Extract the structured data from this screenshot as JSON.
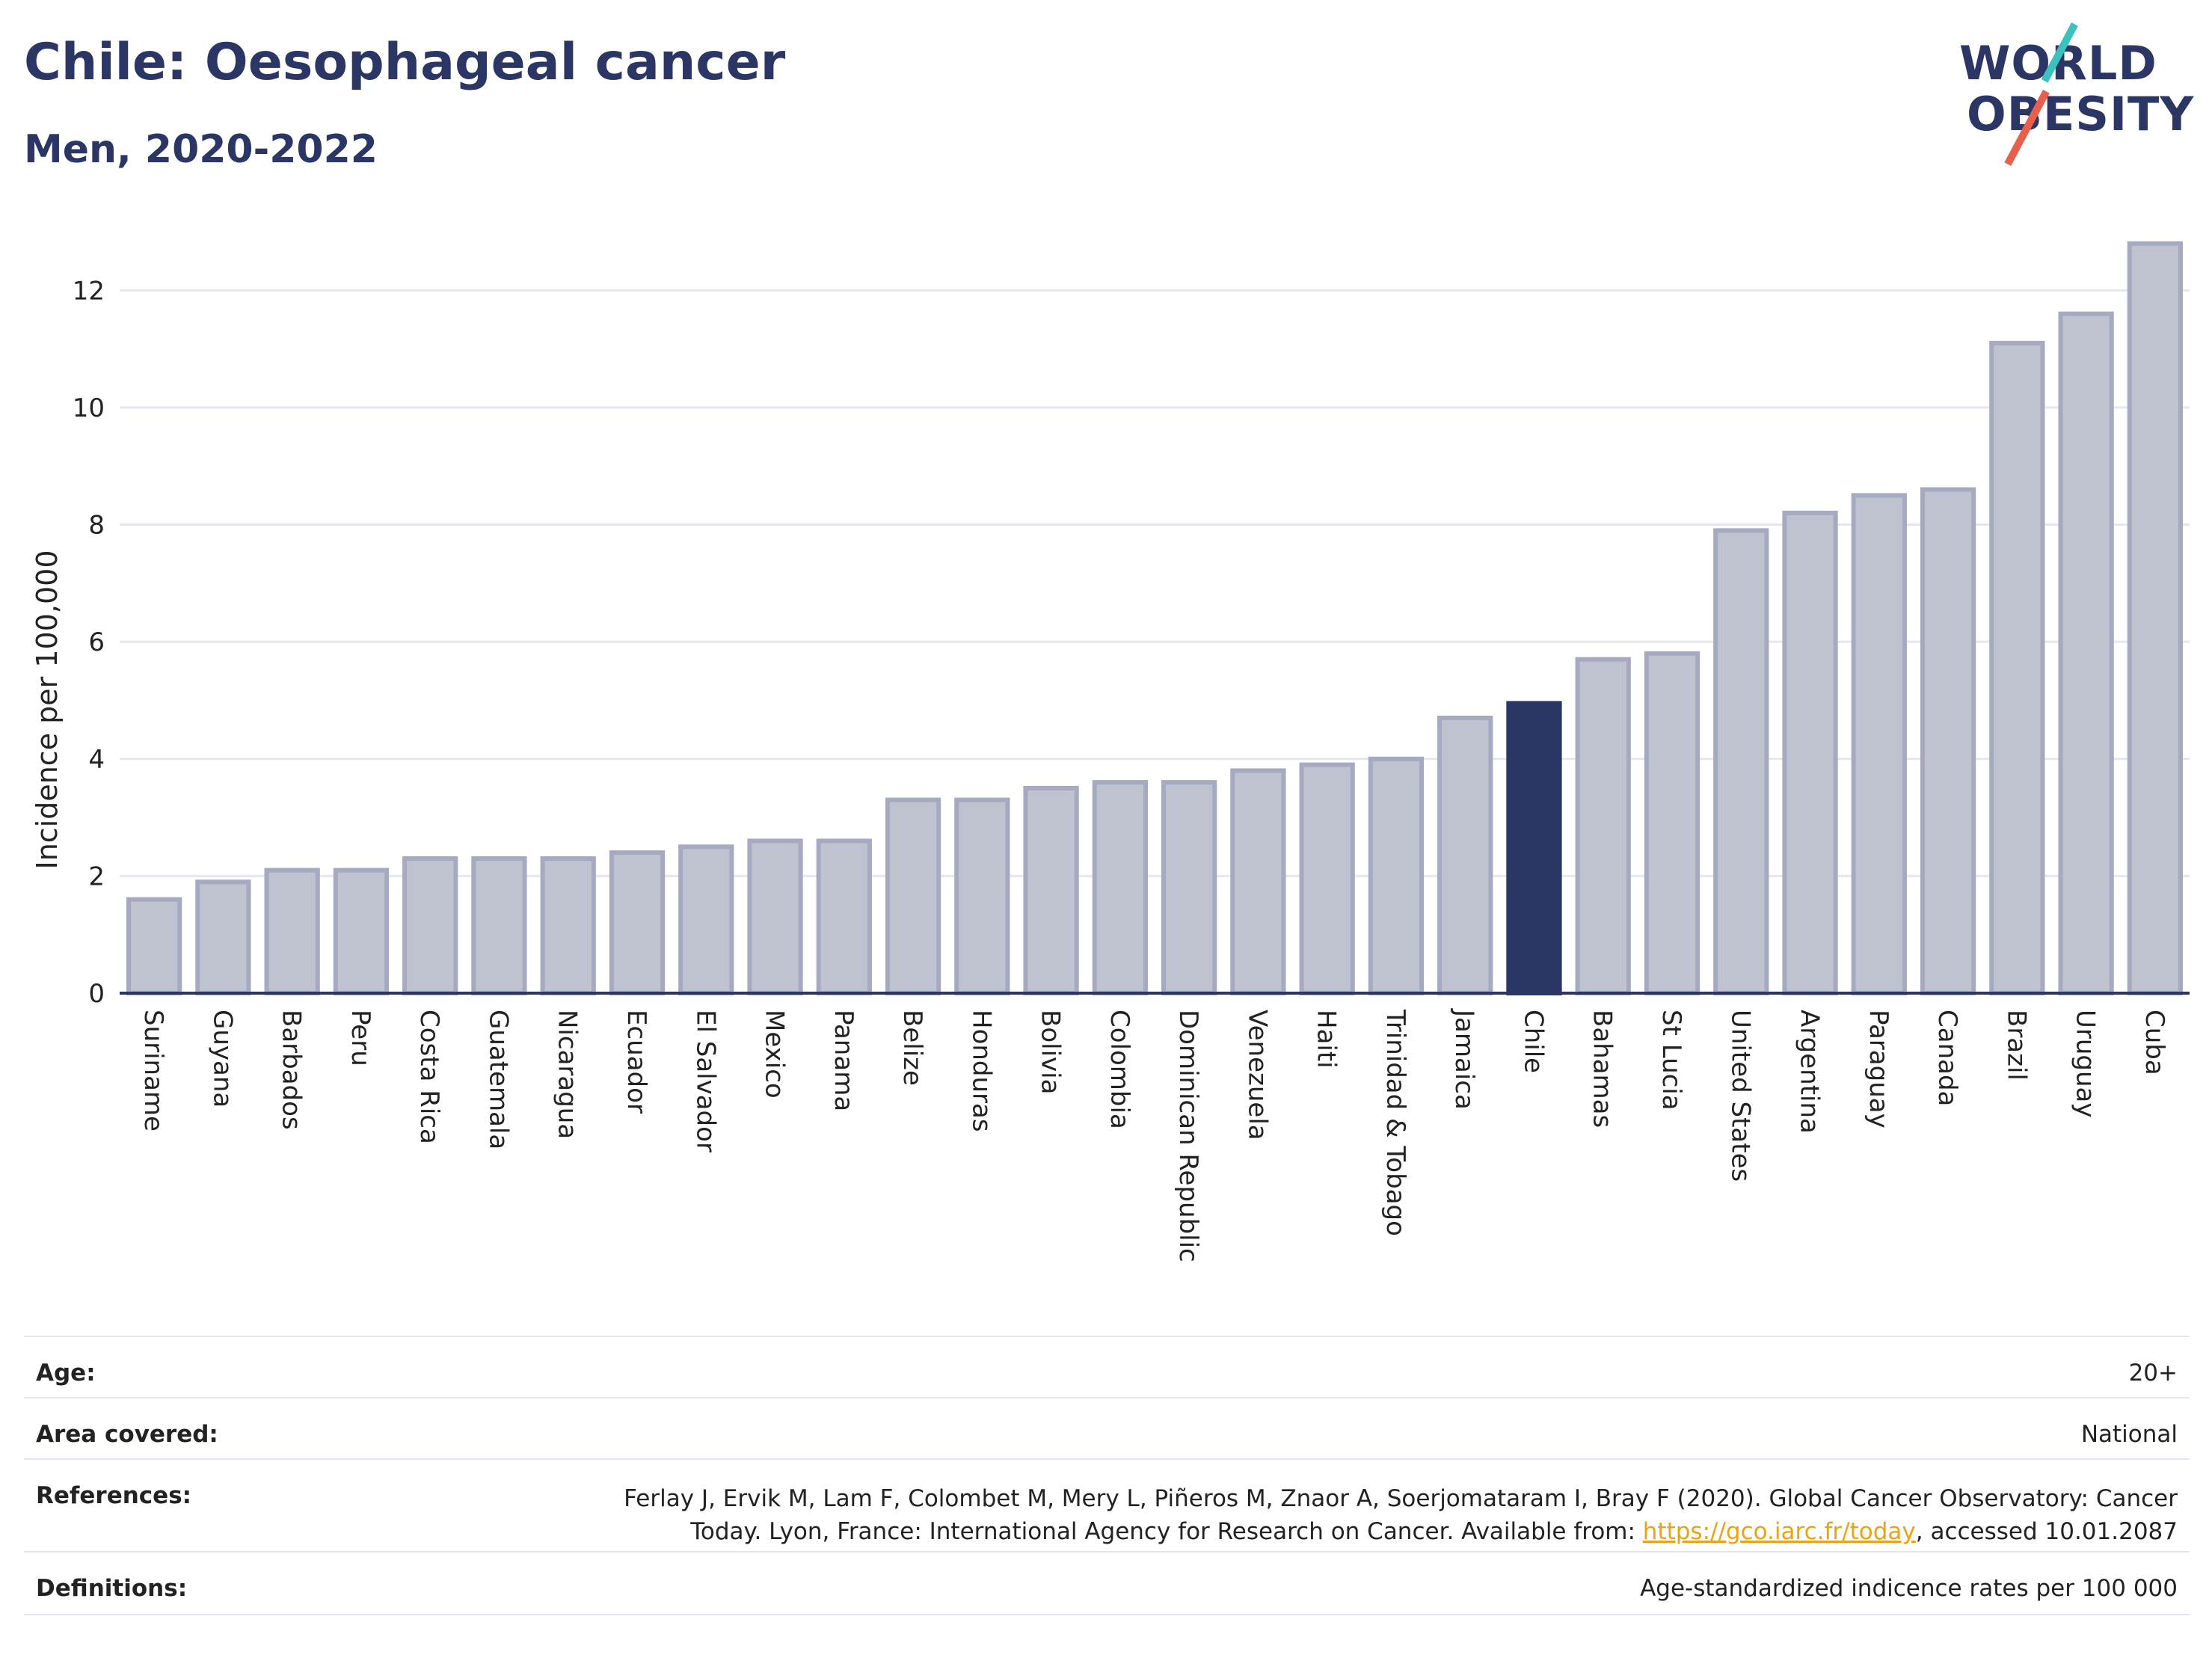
{
  "header": {
    "title": "Chile: Oesophageal cancer",
    "subtitle": "Men, 2020-2022",
    "logo_line1": "WORLD",
    "logo_line2": "OBESITY"
  },
  "chart_data": {
    "type": "bar",
    "ylabel": "Incidence per 100,000",
    "xlabel": "",
    "ylim": [
      0,
      13
    ],
    "yticks": [
      0,
      2,
      4,
      6,
      8,
      10,
      12
    ],
    "grid": true,
    "highlight": "Chile",
    "colors": {
      "bar": "#bfc2cf",
      "bar_edge": "#a5aac0",
      "highlight": "#2b3664",
      "grid": "#e6e7ee"
    },
    "categories": [
      "Suriname",
      "Guyana",
      "Barbados",
      "Peru",
      "Costa Rica",
      "Guatemala",
      "Nicaragua",
      "Ecuador",
      "El Salvador",
      "Mexico",
      "Panama",
      "Belize",
      "Honduras",
      "Bolivia",
      "Colombia",
      "Dominican Republic",
      "Venezuela",
      "Haiti",
      "Trinidad & Tobago",
      "Jamaica",
      "Chile",
      "Bahamas",
      "St Lucia",
      "United States",
      "Argentina",
      "Paraguay",
      "Canada",
      "Brazil",
      "Uruguay",
      "Cuba"
    ],
    "values": [
      1.6,
      1.9,
      2.1,
      2.1,
      2.3,
      2.3,
      2.3,
      2.4,
      2.5,
      2.6,
      2.6,
      3.3,
      3.3,
      3.5,
      3.6,
      3.6,
      3.8,
      3.9,
      4.0,
      4.7,
      4.95,
      5.7,
      5.8,
      7.9,
      8.2,
      8.5,
      8.6,
      11.1,
      11.6,
      12.8
    ]
  },
  "info": {
    "age_label": "Age:",
    "age_value": "20+",
    "area_label": "Area covered:",
    "area_value": "National",
    "references_label": "References:",
    "references_line1": "Ferlay J, Ervik M, Lam F, Colombet M, Mery L, Piñeros M, Znaor A, Soerjomataram I, Bray F (2020). Global Cancer Observatory: Cancer",
    "references_line2_pre": "Today. Lyon, France: International Agency for Research on Cancer. Available from: ",
    "references_link": "https://gco.iarc.fr/today",
    "references_line2_post": ", accessed 10.01.2087",
    "definitions_label": "Definitions:",
    "definitions_value": "Age-standardized indicence rates per 100 000"
  }
}
